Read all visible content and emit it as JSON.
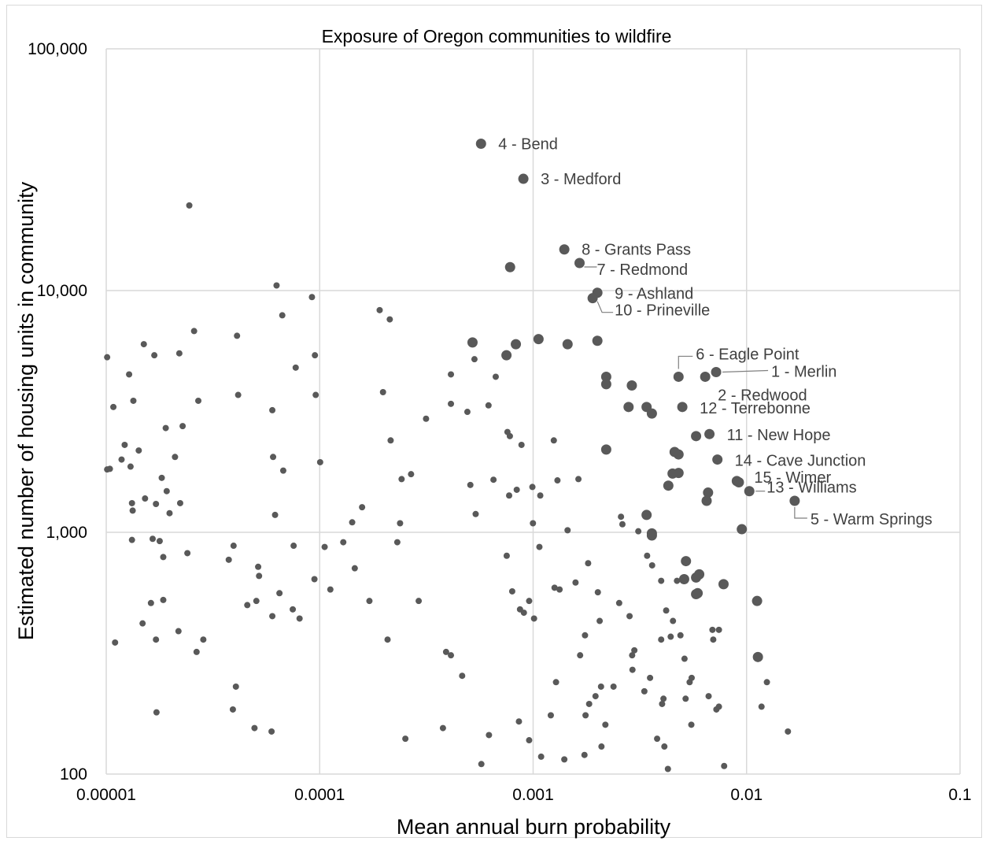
{
  "chart_data": {
    "type": "scatter",
    "title": "Exposure of Oregon communities to wildfire",
    "xlabel": "Mean annual burn probability",
    "ylabel": "Estimated number of housing units in community",
    "xscale": "log",
    "yscale": "log",
    "xlim": [
      1e-05,
      0.1
    ],
    "ylim": [
      100,
      100000
    ],
    "xticks": [
      "0.00001",
      "0.0001",
      "0.001",
      "0.01",
      "0.1"
    ],
    "yticks": [
      "100",
      "1,000",
      "10,000",
      "100,000"
    ],
    "grid": true,
    "legend": "none",
    "colors": {
      "marker": "#595959",
      "label": "#404040",
      "grid": "#d9d9d9"
    },
    "labeled_points": [
      {
        "label": "4 - Bend",
        "x": 0.00057,
        "y": 40500
      },
      {
        "label": "3 - Medford",
        "x": 0.0009,
        "y": 29000
      },
      {
        "label": "8 - Grants Pass",
        "x": 0.0014,
        "y": 14800
      },
      {
        "label": "7 - Redmond",
        "x": 0.00165,
        "y": 13000
      },
      {
        "label": "9 - Ashland",
        "x": 0.002,
        "y": 9800
      },
      {
        "label": "10 - Prineville",
        "x": 0.0019,
        "y": 9300
      },
      {
        "label": "6 - Eagle Point",
        "x": 0.0048,
        "y": 4400
      },
      {
        "label": "1 - Merlin",
        "x": 0.0072,
        "y": 4600
      },
      {
        "label": "2 - Redwood",
        "x": 0.0064,
        "y": 4400
      },
      {
        "label": "12 - Terrebonne",
        "x": 0.005,
        "y": 3300
      },
      {
        "label": "11 - New Hope",
        "x": 0.0067,
        "y": 2550
      },
      {
        "label": "14 - Cave Junction",
        "x": 0.0073,
        "y": 2000
      },
      {
        "label": "15 - Wimer",
        "x": 0.009,
        "y": 1630
      },
      {
        "label": "13 - Williams",
        "x": 0.0103,
        "y": 1480
      },
      {
        "label": "5 - Warm Springs",
        "x": 0.0168,
        "y": 1350
      }
    ],
    "large_points": [
      {
        "x": 0.00078,
        "y": 12500
      },
      {
        "x": 0.00052,
        "y": 6100
      },
      {
        "x": 0.00083,
        "y": 6000
      },
      {
        "x": 0.00106,
        "y": 6300
      },
      {
        "x": 0.00145,
        "y": 6000
      },
      {
        "x": 0.002,
        "y": 6200
      },
      {
        "x": 0.00075,
        "y": 5400
      },
      {
        "x": 0.0022,
        "y": 4400
      },
      {
        "x": 0.0022,
        "y": 4100
      },
      {
        "x": 0.0029,
        "y": 4050
      },
      {
        "x": 0.0028,
        "y": 3300
      },
      {
        "x": 0.0034,
        "y": 3300
      },
      {
        "x": 0.0036,
        "y": 3100
      },
      {
        "x": 0.0058,
        "y": 2500
      },
      {
        "x": 0.0022,
        "y": 2200
      },
      {
        "x": 0.0046,
        "y": 2150
      },
      {
        "x": 0.0048,
        "y": 2100
      },
      {
        "x": 0.0045,
        "y": 1750
      },
      {
        "x": 0.0048,
        "y": 1760
      },
      {
        "x": 0.0043,
        "y": 1560
      },
      {
        "x": 0.0066,
        "y": 1460
      },
      {
        "x": 0.0065,
        "y": 1350
      },
      {
        "x": 0.0092,
        "y": 1610
      },
      {
        "x": 0.0034,
        "y": 1180
      },
      {
        "x": 0.0095,
        "y": 1030
      },
      {
        "x": 0.0036,
        "y": 990
      },
      {
        "x": 0.0036,
        "y": 970
      },
      {
        "x": 0.0052,
        "y": 760
      },
      {
        "x": 0.006,
        "y": 670
      },
      {
        "x": 0.0058,
        "y": 650
      },
      {
        "x": 0.0051,
        "y": 640
      },
      {
        "x": 0.0078,
        "y": 610
      },
      {
        "x": 0.0059,
        "y": 560
      },
      {
        "x": 0.0058,
        "y": 555
      },
      {
        "x": 0.0112,
        "y": 520
      },
      {
        "x": 0.0113,
        "y": 305
      }
    ],
    "small_points": [
      {
        "x": 1.01e-05,
        "y": 5300
      },
      {
        "x": 1.01e-05,
        "y": 1820
      },
      {
        "x": 1.04e-05,
        "y": 1830
      },
      {
        "x": 1.08e-05,
        "y": 3300
      },
      {
        "x": 1.1e-05,
        "y": 350
      },
      {
        "x": 1.18e-05,
        "y": 2000
      },
      {
        "x": 1.22e-05,
        "y": 2300
      },
      {
        "x": 1.28e-05,
        "y": 4500
      },
      {
        "x": 1.3e-05,
        "y": 1870
      },
      {
        "x": 1.32e-05,
        "y": 1320
      },
      {
        "x": 1.33e-05,
        "y": 1230
      },
      {
        "x": 1.34e-05,
        "y": 3500
      },
      {
        "x": 1.32e-05,
        "y": 930
      },
      {
        "x": 1.42e-05,
        "y": 2180
      },
      {
        "x": 1.48e-05,
        "y": 420
      },
      {
        "x": 1.5e-05,
        "y": 6000
      },
      {
        "x": 1.52e-05,
        "y": 1380
      },
      {
        "x": 1.62e-05,
        "y": 510
      },
      {
        "x": 1.65e-05,
        "y": 940
      },
      {
        "x": 1.68e-05,
        "y": 5400
      },
      {
        "x": 1.71e-05,
        "y": 1310
      },
      {
        "x": 1.71e-05,
        "y": 360
      },
      {
        "x": 1.72e-05,
        "y": 180
      },
      {
        "x": 1.78e-05,
        "y": 920
      },
      {
        "x": 1.82e-05,
        "y": 1680
      },
      {
        "x": 1.85e-05,
        "y": 525
      },
      {
        "x": 1.85e-05,
        "y": 790
      },
      {
        "x": 1.9e-05,
        "y": 2700
      },
      {
        "x": 1.92e-05,
        "y": 1480
      },
      {
        "x": 1.98e-05,
        "y": 1200
      },
      {
        "x": 2.1e-05,
        "y": 2050
      },
      {
        "x": 2.18e-05,
        "y": 390
      },
      {
        "x": 2.2e-05,
        "y": 5500
      },
      {
        "x": 2.22e-05,
        "y": 1320
      },
      {
        "x": 2.28e-05,
        "y": 2750
      },
      {
        "x": 2.4e-05,
        "y": 820
      },
      {
        "x": 2.45e-05,
        "y": 22500
      },
      {
        "x": 2.58e-05,
        "y": 6800
      },
      {
        "x": 2.65e-05,
        "y": 320
      },
      {
        "x": 2.7e-05,
        "y": 3500
      },
      {
        "x": 2.85e-05,
        "y": 360
      },
      {
        "x": 3.75e-05,
        "y": 770
      },
      {
        "x": 3.92e-05,
        "y": 185
      },
      {
        "x": 3.95e-05,
        "y": 880
      },
      {
        "x": 4.05e-05,
        "y": 230
      },
      {
        "x": 4.1e-05,
        "y": 6500
      },
      {
        "x": 4.15e-05,
        "y": 3700
      },
      {
        "x": 4.58e-05,
        "y": 500
      },
      {
        "x": 4.95e-05,
        "y": 155
      },
      {
        "x": 5.05e-05,
        "y": 520
      },
      {
        "x": 5.15e-05,
        "y": 720
      },
      {
        "x": 5.2e-05,
        "y": 660
      },
      {
        "x": 5.95e-05,
        "y": 150
      },
      {
        "x": 6e-05,
        "y": 3200
      },
      {
        "x": 6e-05,
        "y": 450
      },
      {
        "x": 6.05e-05,
        "y": 2050
      },
      {
        "x": 6.18e-05,
        "y": 1180
      },
      {
        "x": 6.28e-05,
        "y": 10500
      },
      {
        "x": 6.48e-05,
        "y": 560
      },
      {
        "x": 6.68e-05,
        "y": 7900
      },
      {
        "x": 6.75e-05,
        "y": 1800
      },
      {
        "x": 7.48e-05,
        "y": 480
      },
      {
        "x": 7.55e-05,
        "y": 880
      },
      {
        "x": 7.72e-05,
        "y": 4800
      },
      {
        "x": 8.05e-05,
        "y": 440
      },
      {
        "x": 9.2e-05,
        "y": 9400
      },
      {
        "x": 9.45e-05,
        "y": 640
      },
      {
        "x": 9.5e-05,
        "y": 5400
      },
      {
        "x": 9.58e-05,
        "y": 3700
      },
      {
        "x": 0.0001005,
        "y": 1950
      },
      {
        "x": 0.0001055,
        "y": 870
      },
      {
        "x": 0.0001122,
        "y": 580
      },
      {
        "x": 0.000129,
        "y": 910
      },
      {
        "x": 0.000142,
        "y": 1100
      },
      {
        "x": 0.000146,
        "y": 710
      },
      {
        "x": 0.000158,
        "y": 1270
      },
      {
        "x": 0.000171,
        "y": 520
      },
      {
        "x": 0.000191,
        "y": 8300
      },
      {
        "x": 0.000198,
        "y": 3800
      },
      {
        "x": 0.000208,
        "y": 360
      },
      {
        "x": 0.000213,
        "y": 7600
      },
      {
        "x": 0.000215,
        "y": 2400
      },
      {
        "x": 0.000231,
        "y": 910
      },
      {
        "x": 0.000238,
        "y": 1090
      },
      {
        "x": 0.000242,
        "y": 1660
      },
      {
        "x": 0.000252,
        "y": 140
      },
      {
        "x": 0.000268,
        "y": 1740
      },
      {
        "x": 0.000291,
        "y": 520
      },
      {
        "x": 0.000315,
        "y": 2950
      },
      {
        "x": 0.000378,
        "y": 155
      },
      {
        "x": 0.000391,
        "y": 320
      },
      {
        "x": 0.000412,
        "y": 4500
      },
      {
        "x": 0.000412,
        "y": 3400
      },
      {
        "x": 0.000412,
        "y": 310
      },
      {
        "x": 0.000465,
        "y": 255
      },
      {
        "x": 0.000492,
        "y": 3150
      },
      {
        "x": 0.000508,
        "y": 1570
      },
      {
        "x": 0.000531,
        "y": 5200
      },
      {
        "x": 0.000538,
        "y": 1190
      },
      {
        "x": 0.000572,
        "y": 110
      },
      {
        "x": 0.000618,
        "y": 3350
      },
      {
        "x": 0.000621,
        "y": 145
      },
      {
        "x": 0.000652,
        "y": 1650
      },
      {
        "x": 0.000668,
        "y": 4400
      },
      {
        "x": 0.000752,
        "y": 800
      },
      {
        "x": 0.000758,
        "y": 2600
      },
      {
        "x": 0.000772,
        "y": 1420
      },
      {
        "x": 0.000778,
        "y": 2500
      },
      {
        "x": 0.000798,
        "y": 570
      },
      {
        "x": 0.000838,
        "y": 1500
      },
      {
        "x": 0.000858,
        "y": 165
      },
      {
        "x": 0.000868,
        "y": 480
      },
      {
        "x": 0.000882,
        "y": 2300
      },
      {
        "x": 0.000905,
        "y": 465
      },
      {
        "x": 0.000958,
        "y": 520
      },
      {
        "x": 0.000958,
        "y": 138
      },
      {
        "x": 0.000992,
        "y": 1540
      },
      {
        "x": 0.000998,
        "y": 1090
      },
      {
        "x": 0.00101,
        "y": 440
      },
      {
        "x": 0.00107,
        "y": 870
      },
      {
        "x": 0.00108,
        "y": 1420
      },
      {
        "x": 0.00109,
        "y": 118
      },
      {
        "x": 0.00121,
        "y": 175
      },
      {
        "x": 0.00125,
        "y": 2400
      },
      {
        "x": 0.00126,
        "y": 590
      },
      {
        "x": 0.00128,
        "y": 240
      },
      {
        "x": 0.0013,
        "y": 1640
      },
      {
        "x": 0.00133,
        "y": 580
      },
      {
        "x": 0.0014,
        "y": 115
      },
      {
        "x": 0.00145,
        "y": 1020
      },
      {
        "x": 0.00158,
        "y": 620
      },
      {
        "x": 0.00163,
        "y": 1660
      },
      {
        "x": 0.00166,
        "y": 310
      },
      {
        "x": 0.00174,
        "y": 120
      },
      {
        "x": 0.00175,
        "y": 375
      },
      {
        "x": 0.00176,
        "y": 175
      },
      {
        "x": 0.00181,
        "y": 745
      },
      {
        "x": 0.00183,
        "y": 195
      },
      {
        "x": 0.00196,
        "y": 210
      },
      {
        "x": 0.00201,
        "y": 565
      },
      {
        "x": 0.00205,
        "y": 430
      },
      {
        "x": 0.00208,
        "y": 230
      },
      {
        "x": 0.00209,
        "y": 130
      },
      {
        "x": 0.00218,
        "y": 160
      },
      {
        "x": 0.00238,
        "y": 230
      },
      {
        "x": 0.00253,
        "y": 510
      },
      {
        "x": 0.00258,
        "y": 1160
      },
      {
        "x": 0.00262,
        "y": 1080
      },
      {
        "x": 0.00283,
        "y": 450
      },
      {
        "x": 0.00291,
        "y": 310
      },
      {
        "x": 0.00292,
        "y": 270
      },
      {
        "x": 0.00298,
        "y": 325
      },
      {
        "x": 0.00311,
        "y": 1010
      },
      {
        "x": 0.00332,
        "y": 220
      },
      {
        "x": 0.00342,
        "y": 800
      },
      {
        "x": 0.00353,
        "y": 250
      },
      {
        "x": 0.00361,
        "y": 730
      },
      {
        "x": 0.00381,
        "y": 140
      },
      {
        "x": 0.00398,
        "y": 630
      },
      {
        "x": 0.00398,
        "y": 360
      },
      {
        "x": 0.00402,
        "y": 195
      },
      {
        "x": 0.00408,
        "y": 205
      },
      {
        "x": 0.00412,
        "y": 130
      },
      {
        "x": 0.0042,
        "y": 475
      },
      {
        "x": 0.00428,
        "y": 105
      },
      {
        "x": 0.00441,
        "y": 370
      },
      {
        "x": 0.00452,
        "y": 430
      },
      {
        "x": 0.00472,
        "y": 630
      },
      {
        "x": 0.0049,
        "y": 375
      },
      {
        "x": 0.00512,
        "y": 300
      },
      {
        "x": 0.00518,
        "y": 205
      },
      {
        "x": 0.00541,
        "y": 240
      },
      {
        "x": 0.00551,
        "y": 160
      },
      {
        "x": 0.00553,
        "y": 250
      },
      {
        "x": 0.00664,
        "y": 210
      },
      {
        "x": 0.00692,
        "y": 395
      },
      {
        "x": 0.00698,
        "y": 360
      },
      {
        "x": 0.00722,
        "y": 185
      },
      {
        "x": 0.00742,
        "y": 190
      },
      {
        "x": 0.00742,
        "y": 395
      },
      {
        "x": 0.00785,
        "y": 108
      },
      {
        "x": 0.01175,
        "y": 190
      },
      {
        "x": 0.01245,
        "y": 240
      },
      {
        "x": 0.01562,
        "y": 150
      }
    ]
  }
}
